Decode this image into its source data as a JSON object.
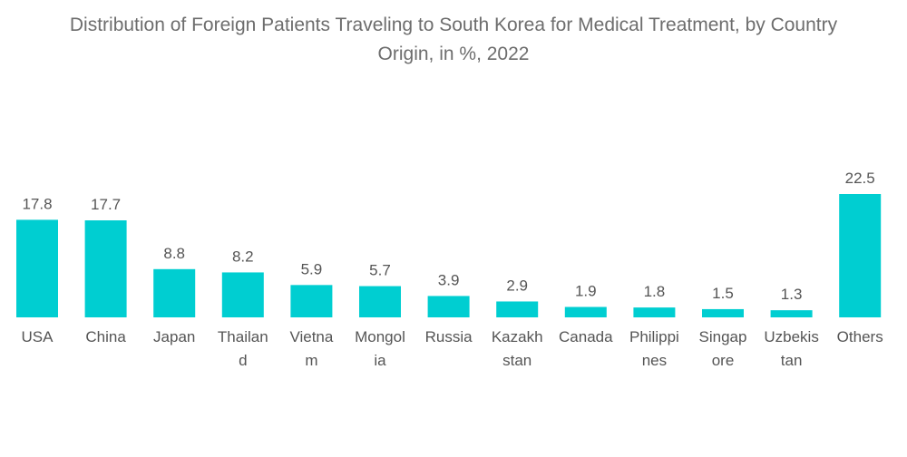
{
  "chart_data": {
    "type": "bar",
    "title_lines": [
      "Distribution of Foreign Patients Traveling to South Korea for Medical Treatment, by Country",
      "Origin, in %, 2022"
    ],
    "categories": [
      [
        "USA"
      ],
      [
        "China"
      ],
      [
        "Japan"
      ],
      [
        "Thailan",
        "d"
      ],
      [
        "Vietna",
        "m"
      ],
      [
        "Mongol",
        "ia"
      ],
      [
        "Russia"
      ],
      [
        "Kazakh",
        "stan"
      ],
      [
        "Canada"
      ],
      [
        "Philippi",
        "nes"
      ],
      [
        "Singap",
        "ore"
      ],
      [
        "Uzbekis",
        "tan"
      ],
      [
        "Others"
      ]
    ],
    "values": [
      17.8,
      17.7,
      8.8,
      8.2,
      5.9,
      5.7,
      3.9,
      2.9,
      1.9,
      1.8,
      1.5,
      1.3,
      22.5
    ],
    "value_labels": [
      "17.8",
      "17.7",
      "8.8",
      "8.2",
      "5.9",
      "5.7",
      "3.9",
      "2.9",
      "1.9",
      "1.8",
      "1.5",
      "1.3",
      "22.5"
    ],
    "ylim": [
      0,
      22.5
    ],
    "xlabel": "",
    "ylabel": "",
    "grid": false,
    "legend": "none",
    "bar_color": "#00ced1",
    "label_color": "#555555"
  }
}
